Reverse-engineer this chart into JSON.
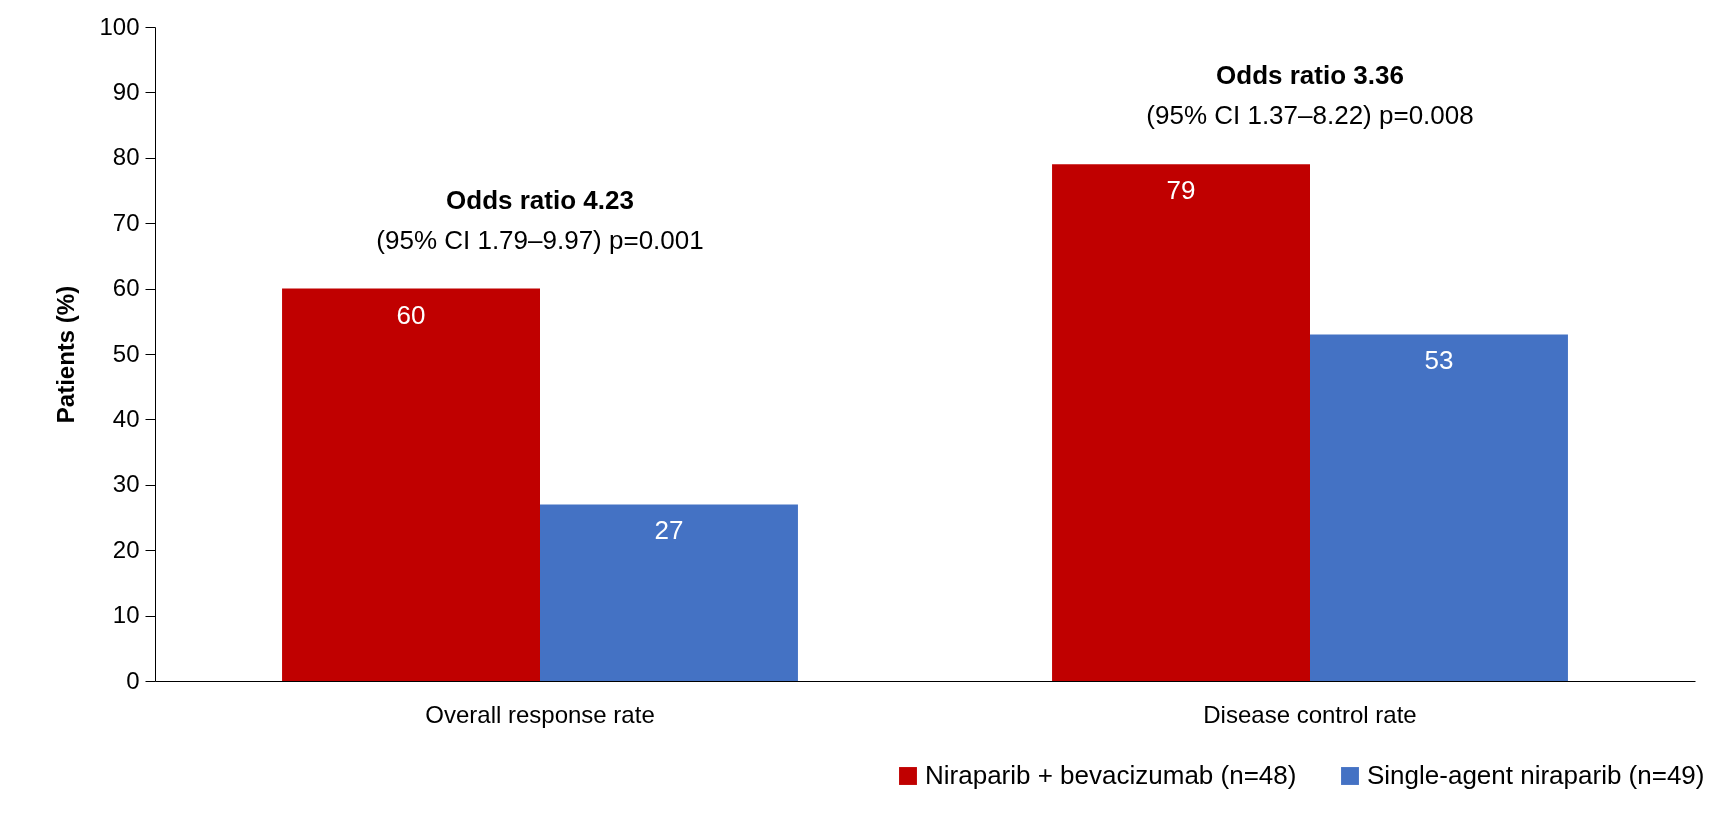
{
  "chart_data": {
    "type": "bar",
    "ylabel": "Patients (%)",
    "categories": [
      "Overall response rate",
      "Disease control rate"
    ],
    "series": [
      {
        "name": "Niraparib + bevacizumab (n=48)",
        "color": "#c00000",
        "values": [
          60,
          79
        ]
      },
      {
        "name": "Single-agent niraparib (n=49)",
        "color": "#4472c4",
        "values": [
          27,
          53
        ]
      }
    ],
    "ylim": [
      0,
      100
    ],
    "yticks": [
      0,
      10,
      20,
      30,
      40,
      50,
      60,
      70,
      80,
      90,
      100
    ],
    "data_labels": true,
    "grid": false,
    "legend": "bottom right",
    "annotations": [
      "Odds ratio 4.23",
      "(95% CI 1.79–9.97) p=0.001",
      "Odds ratio 3.36",
      "(95% CI 1.37–8.22) p=0.008"
    ]
  }
}
